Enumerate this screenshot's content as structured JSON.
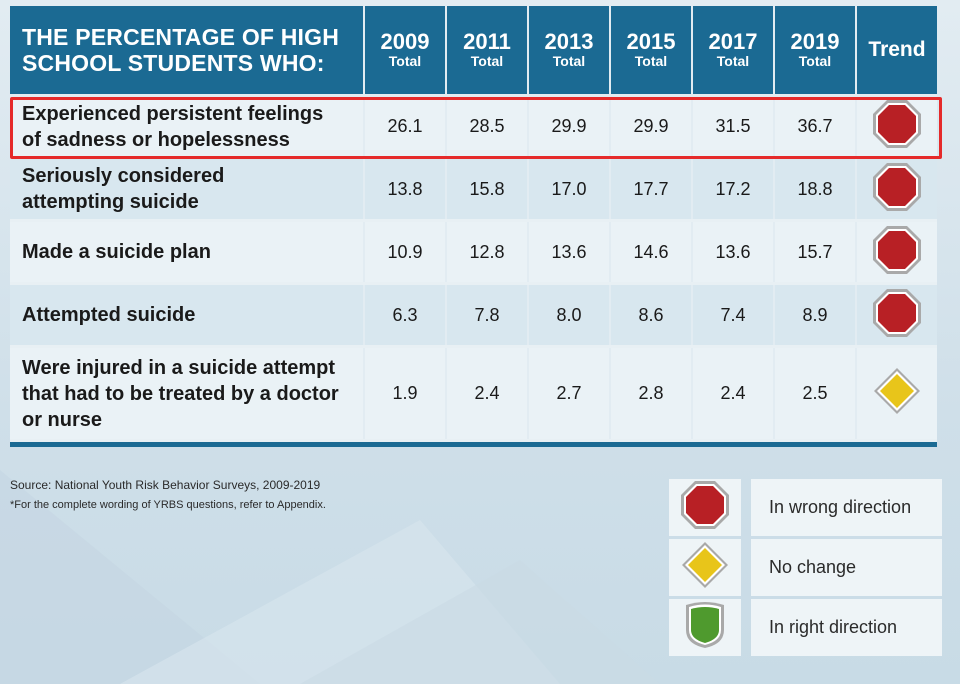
{
  "header": {
    "title_line1": "THE PERCENTAGE OF HIGH",
    "title_line2": "SCHOOL STUDENTS WHO:",
    "years": [
      "2009",
      "2011",
      "2013",
      "2015",
      "2017",
      "2019"
    ],
    "subheader": "Total",
    "trend_label": "Trend"
  },
  "rows": [
    {
      "label_lines": [
        "Experienced persistent feelings",
        "of sadness or hopelessness"
      ],
      "values": [
        "26.1",
        "28.5",
        "29.9",
        "29.9",
        "31.5",
        "36.7"
      ],
      "trend": "octagon-icon",
      "highlighted": true
    },
    {
      "label_lines": [
        "Seriously considered",
        "attempting suicide"
      ],
      "values": [
        "13.8",
        "15.8",
        "17.0",
        "17.7",
        "17.2",
        "18.8"
      ],
      "trend": "octagon-icon"
    },
    {
      "label_lines": [
        "Made a suicide plan"
      ],
      "values": [
        "10.9",
        "12.8",
        "13.6",
        "14.6",
        "13.6",
        "15.7"
      ],
      "trend": "octagon-icon"
    },
    {
      "label_lines": [
        "Attempted suicide"
      ],
      "values": [
        "6.3",
        "7.8",
        "8.0",
        "8.6",
        "7.4",
        "8.9"
      ],
      "trend": "octagon-icon"
    },
    {
      "label_lines": [
        "Were injured in a suicide attempt",
        "that had to be treated by a doctor",
        "or nurse"
      ],
      "values": [
        "1.9",
        "2.4",
        "2.7",
        "2.8",
        "2.4",
        "2.5"
      ],
      "trend": "diamond-icon"
    }
  ],
  "source": {
    "line1": "Source: National Youth Risk Behavior Surveys, 2009-2019",
    "line2": "*For the complete wording of YRBS questions, refer to Appendix."
  },
  "legend": [
    {
      "icon": "octagon-icon",
      "label": "In wrong direction"
    },
    {
      "icon": "diamond-icon",
      "label": "No change"
    },
    {
      "icon": "shield-icon",
      "label": "In right direction"
    }
  ],
  "colors": {
    "header_bg": "#1b6a93",
    "wrong_direction": "#b82025",
    "no_change": "#e8c51a",
    "right_direction": "#4f9a2e",
    "highlight_box": "#e52a2a"
  },
  "chart_data": {
    "type": "table",
    "title": "THE PERCENTAGE OF HIGH SCHOOL STUDENTS WHO:",
    "columns": [
      "2009",
      "2011",
      "2013",
      "2015",
      "2017",
      "2019",
      "Trend"
    ],
    "series": [
      {
        "name": "Experienced persistent feelings of sadness or hopelessness",
        "values": [
          26.1,
          28.5,
          29.9,
          29.9,
          31.5,
          36.7
        ],
        "trend": "In wrong direction"
      },
      {
        "name": "Seriously considered attempting suicide",
        "values": [
          13.8,
          15.8,
          17.0,
          17.7,
          17.2,
          18.8
        ],
        "trend": "In wrong direction"
      },
      {
        "name": "Made a suicide plan",
        "values": [
          10.9,
          12.8,
          13.6,
          14.6,
          13.6,
          15.7
        ],
        "trend": "In wrong direction"
      },
      {
        "name": "Attempted suicide",
        "values": [
          6.3,
          7.8,
          8.0,
          8.6,
          7.4,
          8.9
        ],
        "trend": "In wrong direction"
      },
      {
        "name": "Were injured in a suicide attempt that had to be treated by a doctor or nurse",
        "values": [
          1.9,
          2.4,
          2.7,
          2.8,
          2.4,
          2.5
        ],
        "trend": "No change"
      }
    ]
  }
}
